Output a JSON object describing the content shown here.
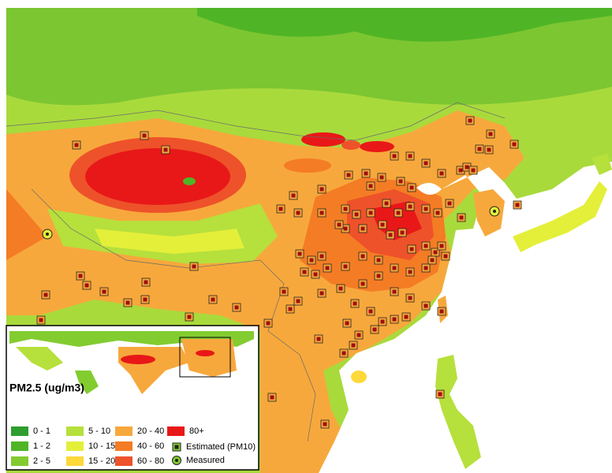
{
  "legend": {
    "title": "PM2.5 (ug/m3)",
    "classes": [
      {
        "label": "0 - 1",
        "color": "#2e9e2e"
      },
      {
        "label": "1 - 2",
        "color": "#4fb526"
      },
      {
        "label": "2 - 5",
        "color": "#82cc30"
      },
      {
        "label": "5 - 10",
        "color": "#b6e03c"
      },
      {
        "label": "10 - 15",
        "color": "#e4ef3a"
      },
      {
        "label": "15 - 20",
        "color": "#ffd83a"
      },
      {
        "label": "20 - 40",
        "color": "#f7a83c"
      },
      {
        "label": "40 - 60",
        "color": "#f47c24"
      },
      {
        "label": "60 - 80",
        "color": "#ee522a"
      },
      {
        "label": "80+",
        "color": "#e81818"
      }
    ],
    "markers": [
      {
        "label": "Estimated (PM10)"
      },
      {
        "label": "Measured"
      }
    ]
  }
}
